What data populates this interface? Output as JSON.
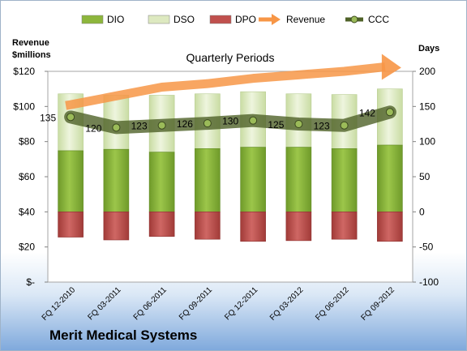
{
  "company": "Merit Medical Systems",
  "chart_data": {
    "type": "bar",
    "title": "Quarterly Periods",
    "left_axis_label_line1": "Revenue",
    "left_axis_label_line2": "$millions",
    "right_axis_label": "Days",
    "left_axis": {
      "min": 0,
      "max": 120,
      "ticks": [
        0,
        20,
        40,
        60,
        80,
        100,
        120
      ],
      "tick_labels": [
        "$-",
        "$20",
        "$40",
        "$60",
        "$80",
        "$100",
        "$120"
      ]
    },
    "right_axis": {
      "min": -100,
      "max": 200,
      "ticks": [
        -100,
        -50,
        0,
        50,
        100,
        150,
        200
      ],
      "tick_labels": [
        "-100",
        "-50",
        "0",
        "50",
        "100",
        "150",
        "200"
      ]
    },
    "categories": [
      "FQ 12-2010",
      "FQ 03-2011",
      "FQ 06-2011",
      "FQ 09-2011",
      "FQ 12-2011",
      "FQ 03-2012",
      "FQ 06-2012",
      "FQ 09-2012"
    ],
    "legend": [
      {
        "name": "DIO",
        "color": "#8db63c"
      },
      {
        "name": "DSO",
        "color": "#dde9c0"
      },
      {
        "name": "DPO",
        "color": "#c0504d"
      },
      {
        "name": "Revenue",
        "color": "#f79646"
      },
      {
        "name": "CCC",
        "color": "#4f6228"
      }
    ],
    "series": [
      {
        "name": "DIO",
        "axis": "right",
        "values": [
          87,
          89,
          85,
          90,
          92,
          92,
          90,
          95
        ]
      },
      {
        "name": "DSO",
        "axis": "right",
        "values": [
          81,
          77,
          81,
          78,
          79,
          76,
          77,
          80
        ]
      },
      {
        "name": "DPO",
        "axis": "right",
        "values": [
          -36,
          -40,
          -35,
          -39,
          -42,
          -41,
          -39,
          -42
        ]
      },
      {
        "name": "Revenue",
        "axis": "left",
        "values": [
          101,
          106,
          111,
          113,
          116,
          118,
          120,
          123
        ]
      },
      {
        "name": "CCC",
        "axis": "right",
        "values": [
          135,
          120,
          123,
          126,
          130,
          125,
          123,
          142
        ]
      }
    ],
    "data_labels": [
      "135",
      "120",
      "123",
      "126",
      "130",
      "125",
      "123",
      "142"
    ],
    "legend_position": "top",
    "grid": false
  }
}
